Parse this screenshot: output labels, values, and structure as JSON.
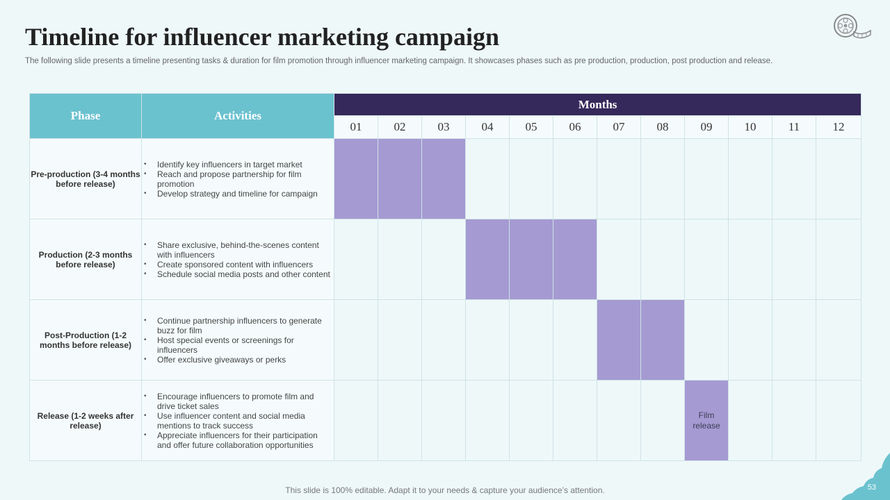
{
  "slide": {
    "title": "Timeline for influencer marketing campaign",
    "subtitle": "The following slide presents a timeline presenting tasks & duration for film promotion through influencer marketing campaign. It showcases phases such as pre production, production, post production and release.",
    "footer": "This slide is 100% editable. Adapt it to your needs & capture your audience’s attention.",
    "page_number": "53",
    "logo_icon": "film-reel-icon"
  },
  "table": {
    "phase_header": "Phase",
    "activities_header": "Activities",
    "months_header": "Months",
    "months": [
      "01",
      "02",
      "03",
      "04",
      "05",
      "06",
      "07",
      "08",
      "09",
      "10",
      "11",
      "12"
    ],
    "rows": [
      {
        "phase": "Pre-production (3-4 months before release)",
        "activities": [
          "Identify key influencers in target market",
          "Reach and propose partnership for film promotion",
          "Develop strategy and timeline for campaign"
        ],
        "active_months": [
          1,
          2,
          3
        ],
        "label": ""
      },
      {
        "phase": "Production (2-3 months before release)",
        "activities": [
          "Share exclusive, behind-the-scenes content with influencers",
          "Create sponsored content with influencers",
          "Schedule social media posts and other content"
        ],
        "active_months": [
          4,
          5,
          6
        ],
        "label": ""
      },
      {
        "phase": "Post-Production (1-2 months before release)",
        "activities": [
          "Continue partnership influencers to generate buzz for film",
          "Host special events or screenings for influencers",
          "Offer exclusive giveaways or perks"
        ],
        "active_months": [
          7,
          8
        ],
        "label": ""
      },
      {
        "phase": "Release (1-2 weeks after release)",
        "activities": [
          "Encourage influencers to promote film and drive ticket sales",
          "Use influencer content and social media mentions to track success",
          "Appreciate influencers for their participation and offer future collaboration opportunities"
        ],
        "active_months": [
          9
        ],
        "label": "Film release"
      }
    ]
  },
  "colors": {
    "header_teal": "#6bc2cf",
    "header_navy": "#35285a",
    "bar_purple": "#a59ad2",
    "background": "#eef8f9"
  }
}
